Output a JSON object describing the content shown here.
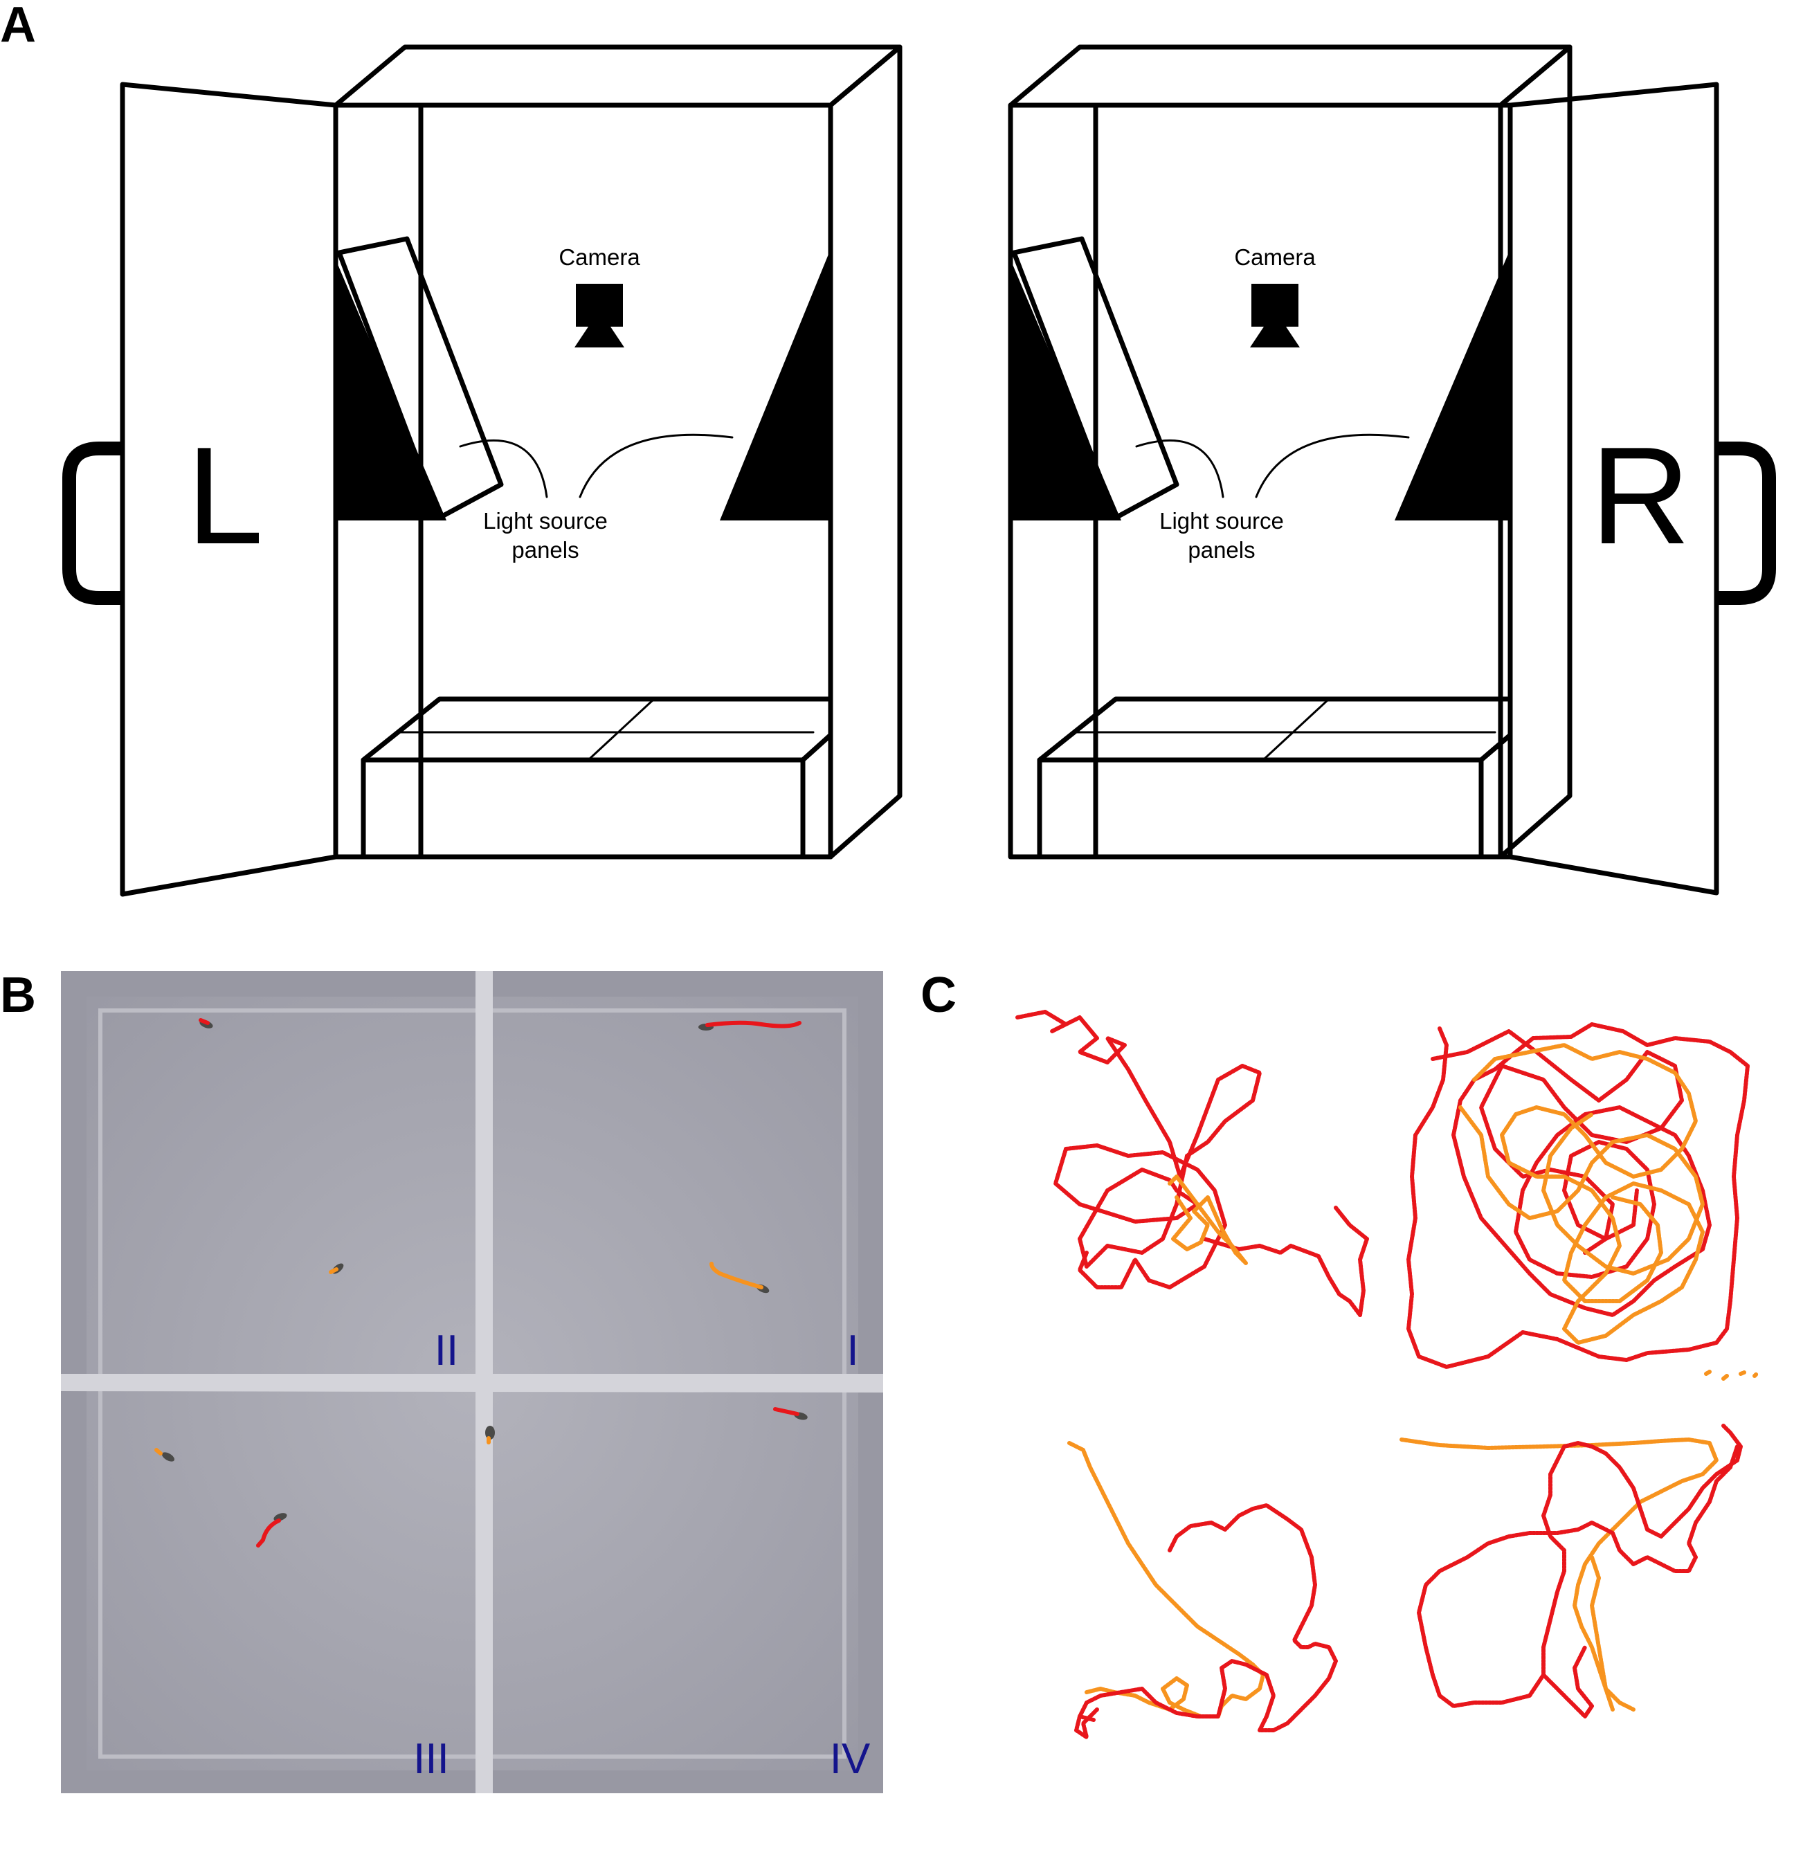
{
  "panels": {
    "a": "A",
    "b": "B",
    "c": "C"
  },
  "cabinets": [
    {
      "door_letter": "L",
      "camera_label": "Camera",
      "light_label_line1": "Light source",
      "light_label_line2": "panels"
    },
    {
      "door_letter": "R",
      "camera_label": "Camera",
      "light_label_line1": "Light source",
      "light_label_line2": "panels"
    }
  ],
  "arena": {
    "quadrants": [
      "I",
      "II",
      "III",
      "IV"
    ]
  },
  "colors": {
    "track_red": "#e8161b",
    "track_orange": "#f7931e",
    "arena_floor": "#a7a7b1",
    "quadrant_label": "#14148c"
  }
}
